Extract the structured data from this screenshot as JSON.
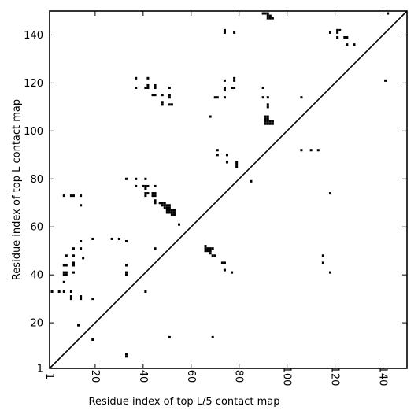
{
  "chart_data": {
    "type": "heatmap",
    "subtype": "contact-map",
    "xlabel": "Residue index of top L/5 contact map",
    "ylabel": "Residue index of top L contact map",
    "xlim": [
      1,
      150
    ],
    "ylim": [
      1,
      150
    ],
    "grid": false,
    "diagonal": true,
    "colors": {
      "contact": "#000000",
      "background": "#ffffff",
      "diagonal": "#000000"
    },
    "xticks": [
      {
        "value": 1,
        "label": "1"
      },
      {
        "value": 20,
        "label": "20"
      },
      {
        "value": 40,
        "label": "40"
      },
      {
        "value": 60,
        "label": "60"
      },
      {
        "value": 80,
        "label": "80"
      },
      {
        "value": 100,
        "label": "100"
      },
      {
        "value": 120,
        "label": "120"
      },
      {
        "value": 140,
        "label": "140"
      }
    ],
    "yticks": [
      {
        "value": 1,
        "label": "1"
      },
      {
        "value": 20,
        "label": "20"
      },
      {
        "value": 40,
        "label": "40"
      },
      {
        "value": 60,
        "label": "60"
      },
      {
        "value": 80,
        "label": "80"
      },
      {
        "value": 100,
        "label": "100"
      },
      {
        "value": 120,
        "label": "120"
      },
      {
        "value": 140,
        "label": "140"
      }
    ],
    "contacts": [
      [
        2,
        33
      ],
      [
        5,
        33
      ],
      [
        7,
        33
      ],
      [
        7,
        37
      ],
      [
        7,
        40
      ],
      [
        8,
        40
      ],
      [
        7,
        41
      ],
      [
        8,
        41
      ],
      [
        7,
        44
      ],
      [
        8,
        44
      ],
      [
        8,
        48
      ],
      [
        10,
        30
      ],
      [
        10,
        31
      ],
      [
        10,
        33
      ],
      [
        11,
        41
      ],
      [
        11,
        44
      ],
      [
        11,
        45
      ],
      [
        11,
        48
      ],
      [
        11,
        51
      ],
      [
        13,
        19
      ],
      [
        14,
        30
      ],
      [
        14,
        31
      ],
      [
        14,
        51
      ],
      [
        14,
        54
      ],
      [
        15,
        47
      ],
      [
        19,
        13
      ],
      [
        19,
        30
      ],
      [
        19,
        55
      ],
      [
        27,
        55
      ],
      [
        30,
        55
      ],
      [
        33,
        6
      ],
      [
        33,
        7
      ],
      [
        33,
        40
      ],
      [
        33,
        41
      ],
      [
        33,
        44
      ],
      [
        33,
        54
      ],
      [
        33,
        80
      ],
      [
        7,
        73
      ],
      [
        10,
        73
      ],
      [
        11,
        73
      ],
      [
        14,
        73
      ],
      [
        14,
        69
      ],
      [
        37,
        77
      ],
      [
        37,
        80
      ],
      [
        40,
        77
      ],
      [
        41,
        76
      ],
      [
        41,
        77
      ],
      [
        42,
        77
      ],
      [
        41,
        74
      ],
      [
        41,
        73
      ],
      [
        42,
        74
      ],
      [
        44,
        73
      ],
      [
        44,
        74
      ],
      [
        45,
        73
      ],
      [
        45,
        74
      ],
      [
        45,
        77
      ],
      [
        45,
        71
      ],
      [
        45,
        70
      ],
      [
        41,
        80
      ],
      [
        47,
        70
      ],
      [
        48,
        70
      ],
      [
        48,
        69
      ],
      [
        49,
        70
      ],
      [
        49,
        69
      ],
      [
        49,
        68
      ],
      [
        50,
        69
      ],
      [
        50,
        68
      ],
      [
        51,
        69
      ],
      [
        51,
        68
      ],
      [
        50,
        67
      ],
      [
        51,
        67
      ],
      [
        50,
        66
      ],
      [
        51,
        66
      ],
      [
        52,
        67
      ],
      [
        52,
        66
      ],
      [
        52,
        65
      ],
      [
        53,
        67
      ],
      [
        53,
        66
      ],
      [
        53,
        65
      ],
      [
        55,
        61
      ],
      [
        45,
        51
      ],
      [
        41,
        33
      ],
      [
        51,
        14
      ],
      [
        19,
        13
      ],
      [
        37,
        118
      ],
      [
        37,
        122
      ],
      [
        41,
        118
      ],
      [
        42,
        118
      ],
      [
        42,
        119
      ],
      [
        42,
        122
      ],
      [
        44,
        115
      ],
      [
        45,
        115
      ],
      [
        45,
        118
      ],
      [
        45,
        119
      ],
      [
        48,
        111
      ],
      [
        48,
        112
      ],
      [
        48,
        115
      ],
      [
        51,
        111
      ],
      [
        51,
        114
      ],
      [
        51,
        115
      ],
      [
        51,
        118
      ],
      [
        52,
        111
      ],
      [
        66,
        52
      ],
      [
        66,
        51
      ],
      [
        67,
        51
      ],
      [
        67,
        50
      ],
      [
        68,
        51
      ],
      [
        68,
        50
      ],
      [
        68,
        49
      ],
      [
        69,
        51
      ],
      [
        69,
        48
      ],
      [
        70,
        48
      ],
      [
        66,
        50
      ],
      [
        73,
        45
      ],
      [
        74,
        45
      ],
      [
        74,
        42
      ],
      [
        77,
        41
      ],
      [
        69,
        14
      ],
      [
        68,
        106
      ],
      [
        70,
        114
      ],
      [
        71,
        114
      ],
      [
        71,
        92
      ],
      [
        71,
        90
      ],
      [
        74,
        114
      ],
      [
        74,
        117
      ],
      [
        74,
        118
      ],
      [
        74,
        121
      ],
      [
        77,
        118
      ],
      [
        78,
        118
      ],
      [
        78,
        121
      ],
      [
        78,
        122
      ],
      [
        74,
        141
      ],
      [
        74,
        142
      ],
      [
        78,
        141
      ],
      [
        75,
        90
      ],
      [
        75,
        87
      ],
      [
        79,
        87
      ],
      [
        79,
        86
      ],
      [
        79,
        85
      ],
      [
        85,
        79
      ],
      [
        90,
        149
      ],
      [
        91,
        149
      ],
      [
        92,
        149
      ],
      [
        92,
        148
      ],
      [
        93,
        148
      ],
      [
        93,
        147
      ],
      [
        92,
        147
      ],
      [
        94,
        147
      ],
      [
        90,
        118
      ],
      [
        90,
        114
      ],
      [
        92,
        114
      ],
      [
        92,
        111
      ],
      [
        92,
        110
      ],
      [
        91,
        106
      ],
      [
        92,
        106
      ],
      [
        91,
        105
      ],
      [
        92,
        105
      ],
      [
        91,
        104
      ],
      [
        92,
        104
      ],
      [
        93,
        104
      ],
      [
        94,
        104
      ],
      [
        93,
        103
      ],
      [
        94,
        103
      ],
      [
        92,
        103
      ],
      [
        91,
        103
      ],
      [
        106,
        114
      ],
      [
        106,
        92
      ],
      [
        110,
        92
      ],
      [
        113,
        92
      ],
      [
        118,
        141
      ],
      [
        121,
        141
      ],
      [
        121,
        142
      ],
      [
        122,
        142
      ],
      [
        121,
        139
      ],
      [
        124,
        139
      ],
      [
        125,
        139
      ],
      [
        125,
        136
      ],
      [
        128,
        136
      ],
      [
        118,
        74
      ],
      [
        118,
        41
      ],
      [
        115,
        48
      ],
      [
        115,
        45
      ],
      [
        141,
        121
      ],
      [
        142,
        149
      ]
    ]
  }
}
